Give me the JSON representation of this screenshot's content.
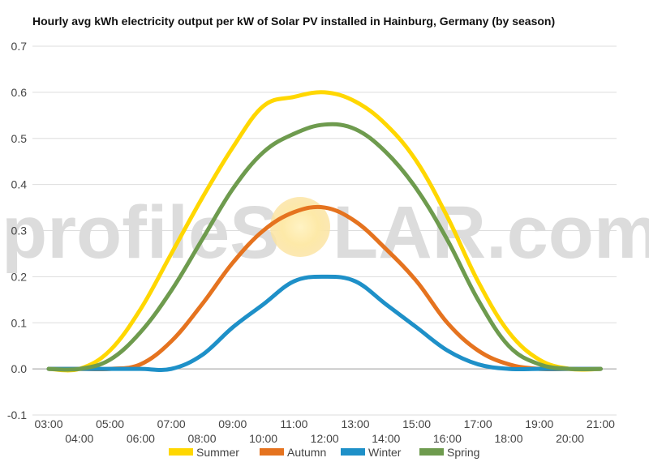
{
  "chart_data": {
    "type": "line",
    "title": "Hourly avg kWh electricity output per kW of Solar PV installed in Hainburg, Germany (by season)",
    "xlabel": "",
    "ylabel": "",
    "ylim": [
      -0.1,
      0.7
    ],
    "yticks": [
      "-0.1",
      "0.0",
      "0.1",
      "0.2",
      "0.3",
      "0.4",
      "0.5",
      "0.6",
      "0.7"
    ],
    "ytick_values": [
      -0.1,
      0.0,
      0.1,
      0.2,
      0.3,
      0.4,
      0.5,
      0.6,
      0.7
    ],
    "categories": [
      "03:00",
      "04:00",
      "05:00",
      "06:00",
      "07:00",
      "08:00",
      "09:00",
      "10:00",
      "11:00",
      "12:00",
      "13:00",
      "14:00",
      "15:00",
      "16:00",
      "17:00",
      "18:00",
      "19:00",
      "20:00",
      "21:00"
    ],
    "grid": true,
    "legend_position": "bottom",
    "series": [
      {
        "name": "Summer",
        "color": "#FFD700",
        "values": [
          0.0,
          0.0,
          0.04,
          0.13,
          0.25,
          0.37,
          0.48,
          0.57,
          0.59,
          0.6,
          0.58,
          0.53,
          0.45,
          0.33,
          0.19,
          0.08,
          0.02,
          0.0,
          0.0
        ]
      },
      {
        "name": "Autumn",
        "color": "#E5731F",
        "values": [
          0.0,
          0.0,
          0.0,
          0.01,
          0.06,
          0.14,
          0.23,
          0.3,
          0.34,
          0.35,
          0.32,
          0.26,
          0.19,
          0.1,
          0.04,
          0.01,
          0.0,
          0.0,
          0.0
        ]
      },
      {
        "name": "Winter",
        "color": "#1E90C8",
        "values": [
          0.0,
          0.0,
          0.0,
          0.0,
          0.0,
          0.03,
          0.09,
          0.14,
          0.19,
          0.2,
          0.19,
          0.14,
          0.09,
          0.04,
          0.01,
          0.0,
          0.0,
          0.0,
          0.0
        ]
      },
      {
        "name": "Spring",
        "color": "#6E9B4E",
        "values": [
          0.0,
          0.0,
          0.02,
          0.08,
          0.17,
          0.28,
          0.39,
          0.47,
          0.51,
          0.53,
          0.52,
          0.47,
          0.39,
          0.28,
          0.15,
          0.05,
          0.01,
          0.0,
          0.0
        ]
      }
    ]
  },
  "watermark": {
    "left": "profileS",
    "right": "LAR.com"
  }
}
